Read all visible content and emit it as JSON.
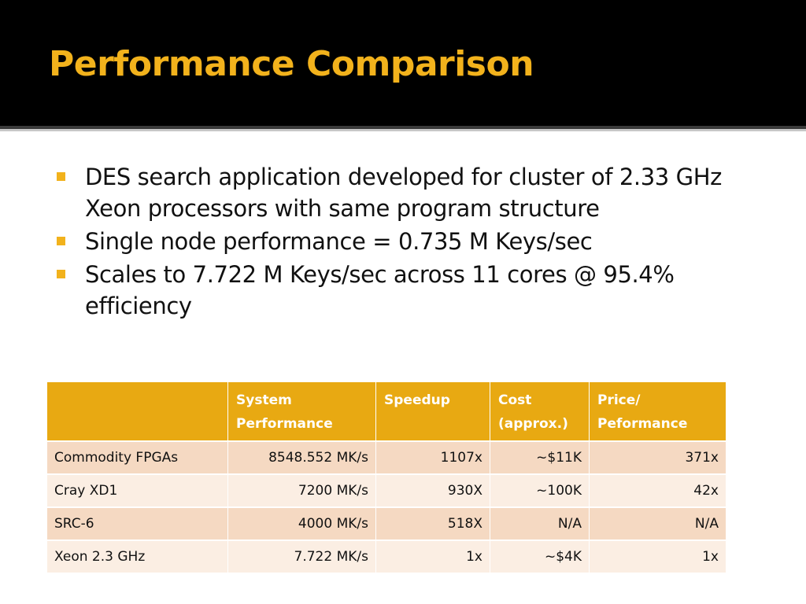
{
  "slide": {
    "title": "Performance Comparison",
    "accent_color": "#f2b21c",
    "bullets": [
      "DES search application developed for cluster of 2.33 GHz Xeon processors with same program structure",
      "Single node performance = 0.735 M Keys/sec",
      "Scales to 7.722 M Keys/sec across 11 cores @ 95.4% efficiency"
    ]
  },
  "table": {
    "headers": [
      "",
      "System Performance",
      "Speedup",
      "Cost (approx.)",
      "Price/ Peformance"
    ],
    "rows": [
      [
        "Commodity FPGAs",
        "8548.552 MK/s",
        "1107x",
        "~$11K",
        "371x"
      ],
      [
        "Cray XD1",
        "7200 MK/s",
        "930X",
        "~100K",
        "42x"
      ],
      [
        "SRC-6",
        "4000 MK/s",
        "518X",
        "N/A",
        "N/A"
      ],
      [
        "Xeon 2.3 GHz",
        "7.722 MK/s",
        "1x",
        "~$4K",
        "1x"
      ]
    ]
  }
}
